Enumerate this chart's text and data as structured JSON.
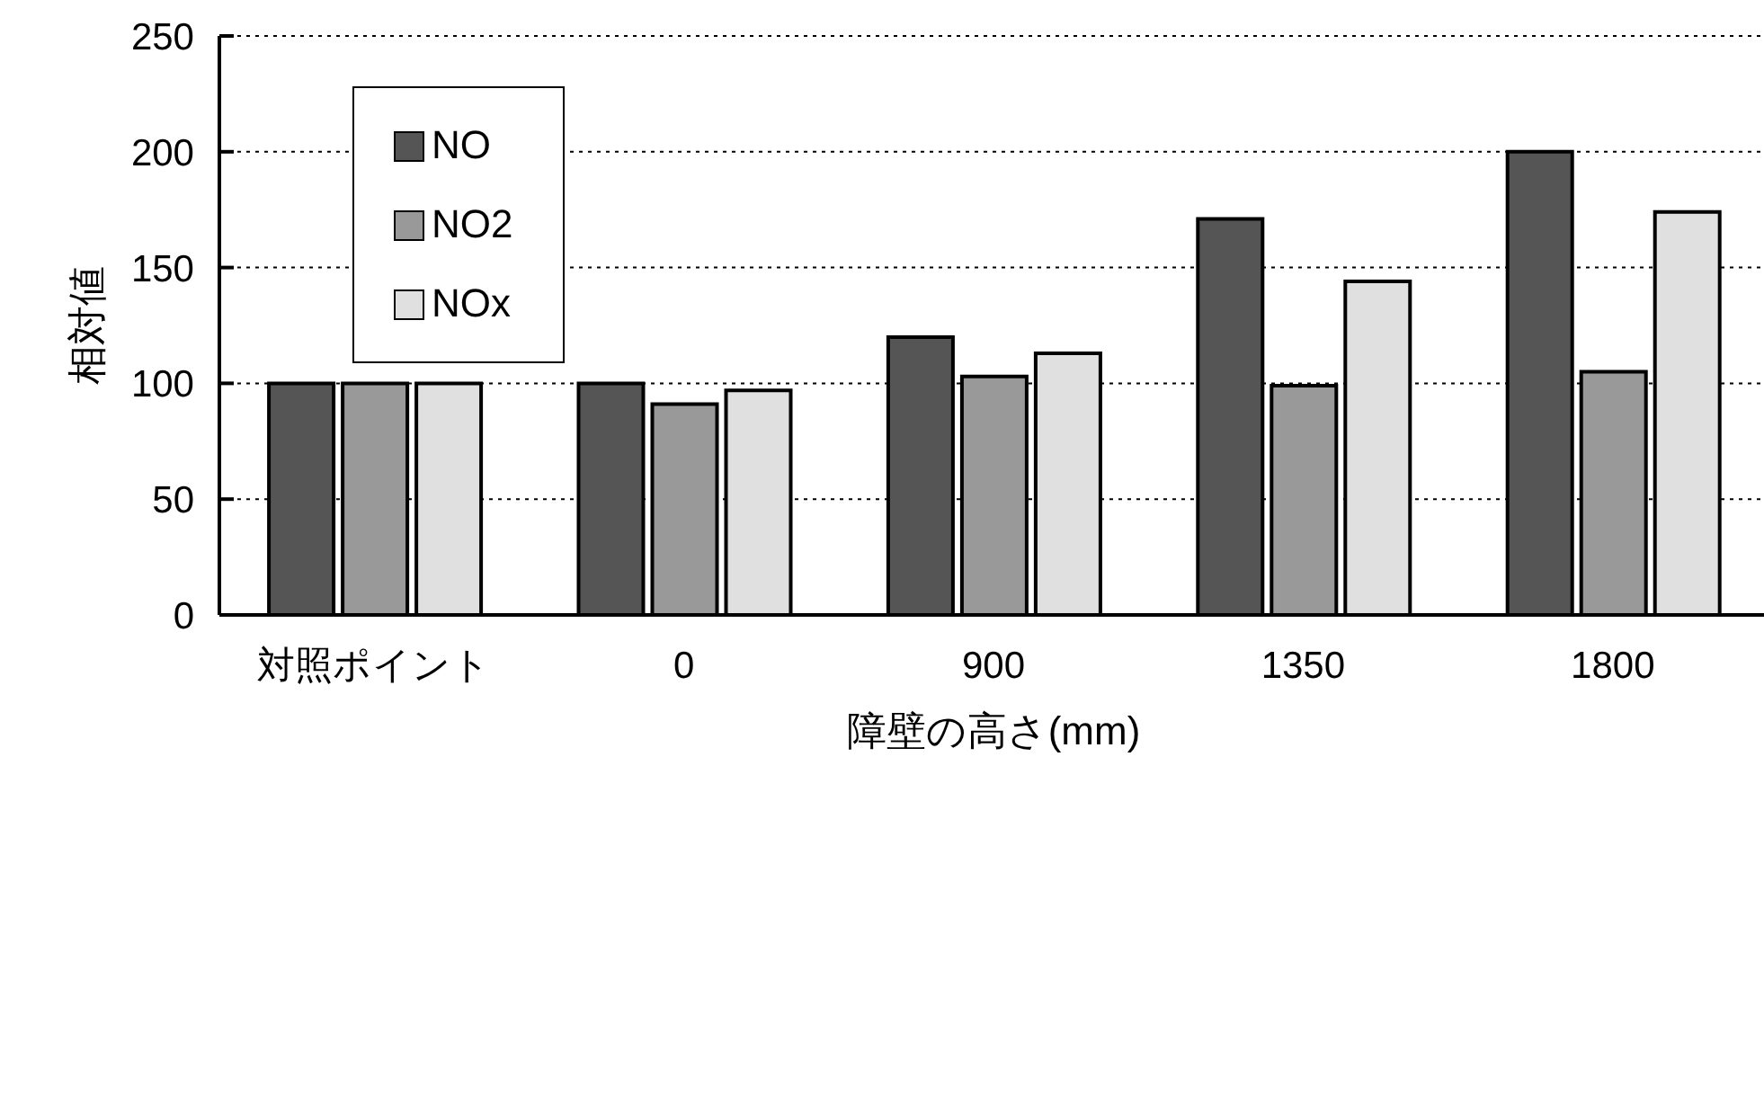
{
  "chart_data": {
    "type": "bar",
    "xlabel": "障壁の高さ(mm)",
    "ylabel": "相対値",
    "categories": [
      "対照ポイント",
      "0",
      "900",
      "1350",
      "1800"
    ],
    "series": [
      {
        "name": "NO",
        "color": "#555555",
        "values": [
          100,
          100,
          120,
          171,
          200
        ]
      },
      {
        "name": "NO2",
        "color": "#999999",
        "values": [
          100,
          91,
          103,
          99,
          105
        ]
      },
      {
        "name": "NOx",
        "color": "#e0e0e0",
        "values": [
          100,
          97,
          113,
          144,
          174
        ]
      }
    ],
    "ylim": [
      0,
      250
    ],
    "yticks": [
      0,
      50,
      100,
      150,
      200,
      250
    ],
    "grid": "y",
    "legend": "top left"
  }
}
